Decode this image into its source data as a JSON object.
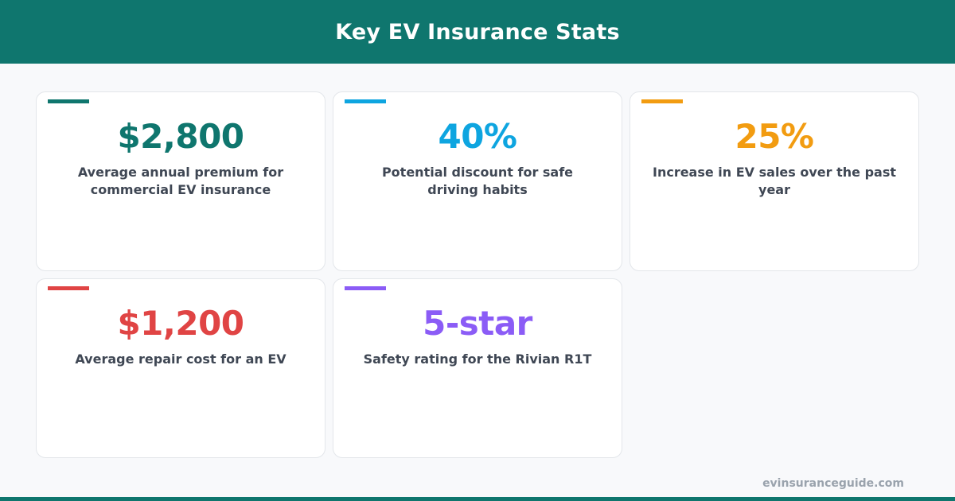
{
  "header": {
    "title": "Key EV Insurance Stats"
  },
  "cards": [
    {
      "value": "$2,800",
      "description": "Average annual premium for commercial EV insurance",
      "color": "#0f766e"
    },
    {
      "value": "40%",
      "description": "Potential discount for safe driving habits",
      "color": "#0ea5e0"
    },
    {
      "value": "25%",
      "description": "Increase in EV sales over the past year",
      "color": "#f29c11"
    },
    {
      "value": "$1,200",
      "description": "Average repair cost for an EV",
      "color": "#e04444"
    },
    {
      "value": "5-star",
      "description": "Safety rating for the Rivian R1T",
      "color": "#8b5cf6"
    }
  ],
  "footer": {
    "site": "evinsuranceguide.com",
    "color": "#0f766e"
  }
}
